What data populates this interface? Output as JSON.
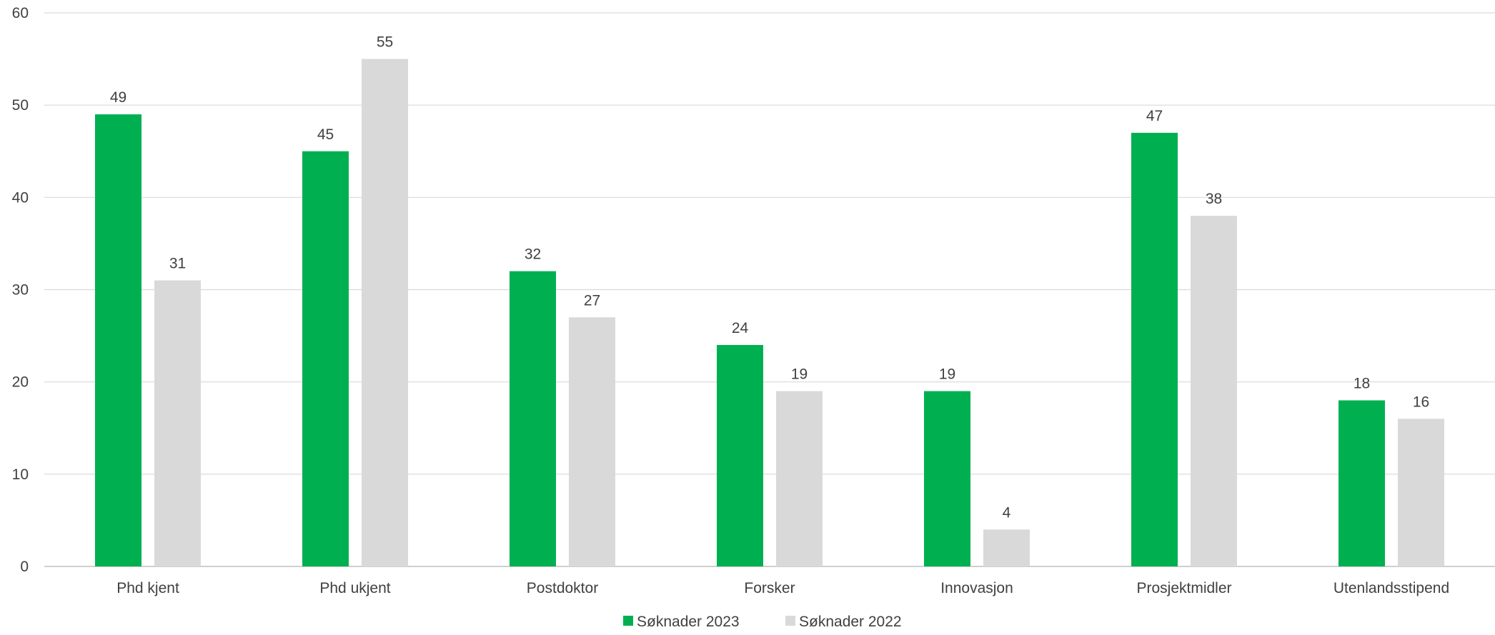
{
  "chart_data": {
    "type": "bar",
    "title": "",
    "xlabel": "",
    "ylabel": "",
    "categories": [
      "Phd kjent",
      "Phd ukjent",
      "Postdoktor",
      "Forsker",
      "Innovasjon",
      "Prosjektmidler",
      "Utenlandsstipend"
    ],
    "series": [
      {
        "name": "Søknader 2023",
        "color": "#00b050",
        "values": [
          49,
          45,
          32,
          24,
          19,
          47,
          18
        ]
      },
      {
        "name": "Søknader 2022",
        "color": "#d9d9d9",
        "values": [
          31,
          55,
          27,
          19,
          4,
          38,
          16
        ]
      }
    ],
    "ylim": [
      0,
      60
    ],
    "yticks": [
      0,
      10,
      20,
      30,
      40,
      50,
      60
    ],
    "grid": true,
    "data_labels": true,
    "legend_position": "bottom"
  }
}
